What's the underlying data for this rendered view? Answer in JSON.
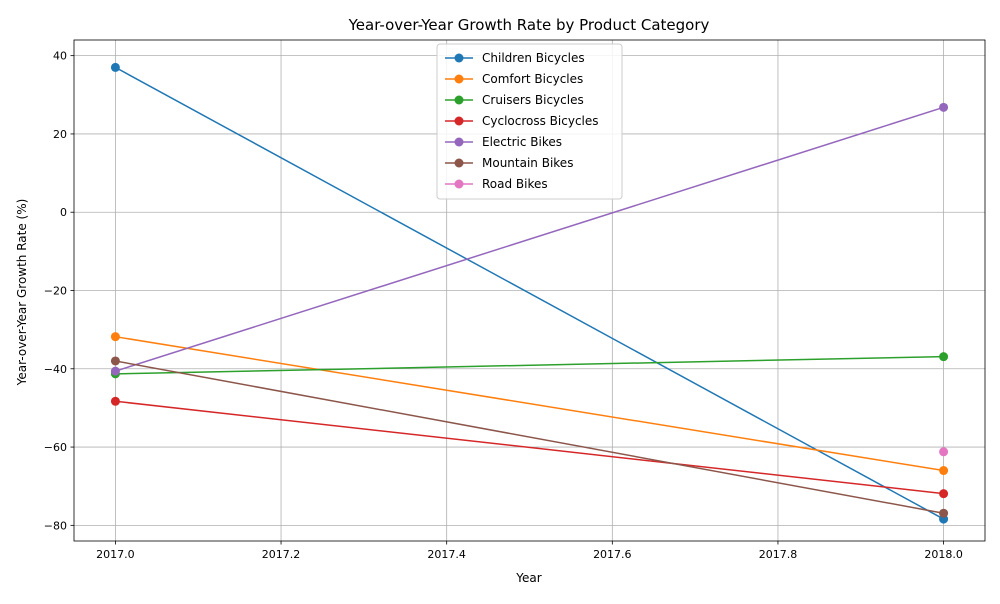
{
  "chart_data": {
    "type": "line",
    "title": "Year-over-Year Growth Rate by Product Category",
    "xlabel": "Year",
    "ylabel": "Year-over-Year Growth Rate (%)",
    "xlim": [
      2016.95,
      2018.05
    ],
    "ylim": [
      -84,
      44
    ],
    "xticks": [
      2017.0,
      2017.2,
      2017.4,
      2017.6,
      2017.8,
      2018.0
    ],
    "xtick_labels": [
      "2017.0",
      "2017.2",
      "2017.4",
      "2017.6",
      "2017.8",
      "2018.0"
    ],
    "yticks": [
      -80,
      -60,
      -40,
      -20,
      0,
      20,
      40
    ],
    "ytick_labels": [
      "−80",
      "−60",
      "−40",
      "−20",
      "0",
      "20",
      "40"
    ],
    "grid": true,
    "legend_position": "upper-center",
    "series": [
      {
        "name": "Children Bicycles",
        "color": "#1f77b4",
        "x": [
          2017,
          2018
        ],
        "y": [
          37.0,
          -78.4
        ]
      },
      {
        "name": "Comfort Bicycles",
        "color": "#ff7f0e",
        "x": [
          2017,
          2018
        ],
        "y": [
          -31.8,
          -66.0
        ]
      },
      {
        "name": "Cruisers Bicycles",
        "color": "#2ca02c",
        "x": [
          2017,
          2018
        ],
        "y": [
          -41.3,
          -36.9
        ]
      },
      {
        "name": "Cyclocross Bicycles",
        "color": "#d62728",
        "x": [
          2017,
          2018
        ],
        "y": [
          -48.3,
          -71.9
        ]
      },
      {
        "name": "Electric Bikes",
        "color": "#9467bd",
        "x": [
          2017,
          2018
        ],
        "y": [
          -40.6,
          26.8
        ]
      },
      {
        "name": "Mountain Bikes",
        "color": "#8c564b",
        "x": [
          2017,
          2018
        ],
        "y": [
          -38.0,
          -76.9
        ]
      },
      {
        "name": "Road Bikes",
        "color": "#e377c2",
        "x": [
          2018
        ],
        "y": [
          -61.2
        ]
      }
    ]
  }
}
